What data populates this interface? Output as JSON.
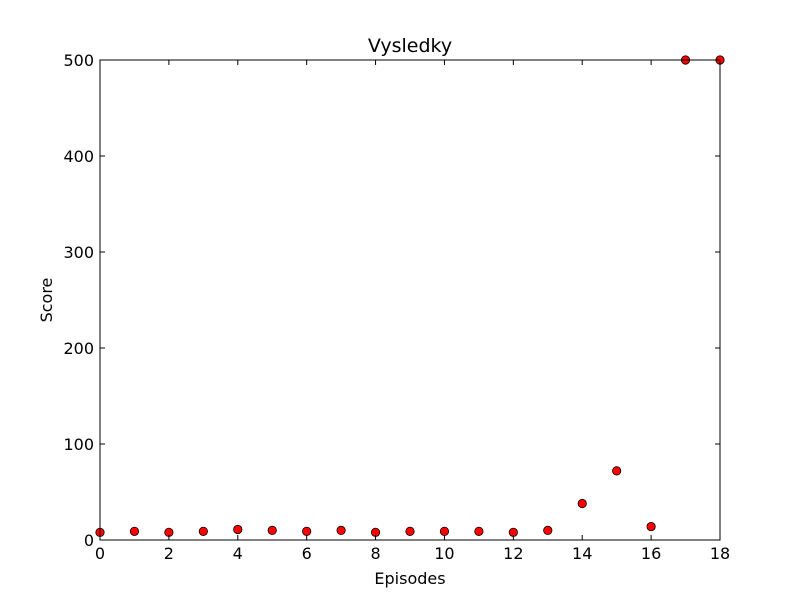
{
  "chart_data": {
    "type": "scatter",
    "title": "Vysledky",
    "xlabel": "Episodes",
    "ylabel": "Score",
    "xlim": [
      0,
      18
    ],
    "ylim": [
      0,
      500
    ],
    "xticks": [
      "0",
      "2",
      "4",
      "6",
      "8",
      "10",
      "12",
      "14",
      "16",
      "18"
    ],
    "yticks": [
      "0",
      "100",
      "200",
      "300",
      "400",
      "500"
    ],
    "grid": false,
    "marker_color": "#ff0000",
    "marker_edge_color": "#000000",
    "series": [
      {
        "x": [
          0,
          1,
          2,
          3,
          4,
          5,
          6,
          7,
          8,
          9,
          10,
          11,
          12,
          13,
          14,
          15,
          16,
          17,
          18
        ],
        "y": [
          8,
          9,
          8,
          9,
          11,
          10,
          9,
          10,
          8,
          9,
          9,
          9,
          8,
          10,
          38,
          72,
          14,
          500,
          500
        ]
      }
    ]
  }
}
